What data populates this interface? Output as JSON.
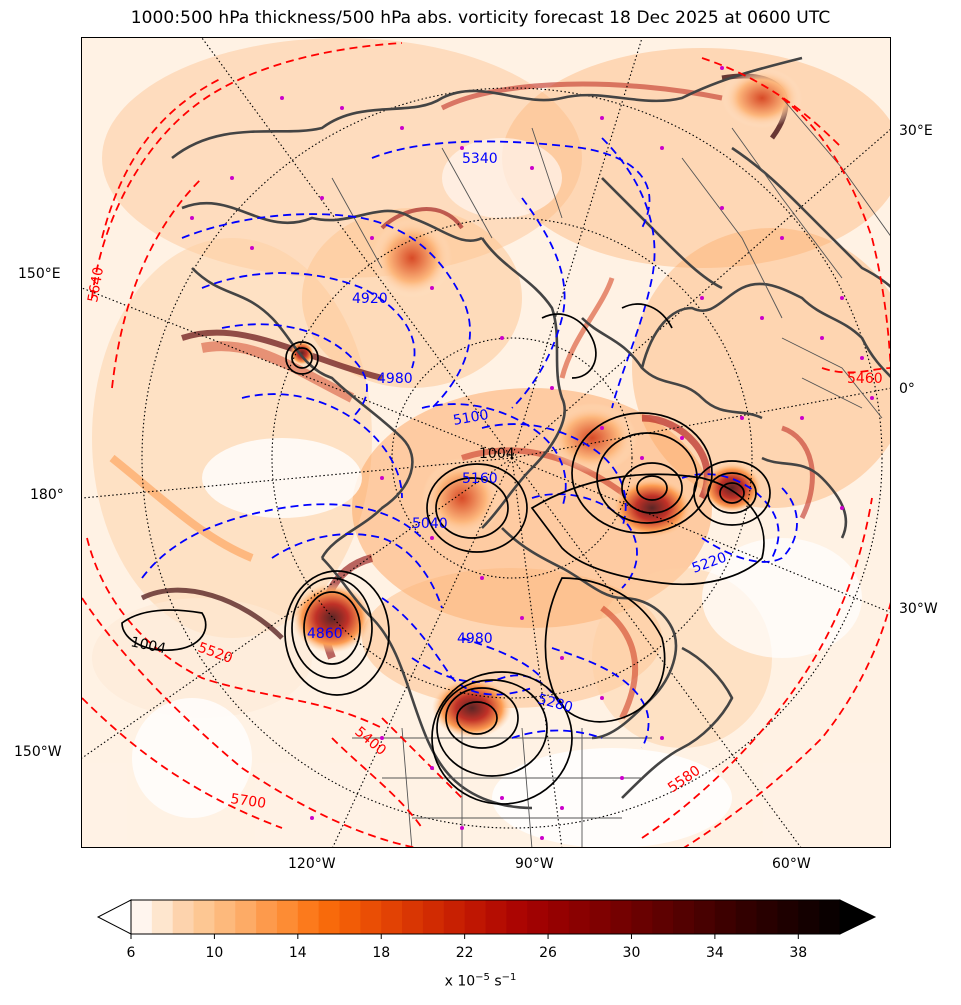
{
  "title": "1000:500 hPa thickness/500 hPa abs. vorticity forecast 18 Dec 2025 at 0600 UTC",
  "map": {
    "projection_labels": {
      "right": [
        "30°E",
        "0°",
        "30°W"
      ],
      "left": [
        "150°E",
        "180°",
        "150°W"
      ],
      "bottom": [
        "120°W",
        "90°W",
        "60°W"
      ]
    },
    "thickness_labels_red": [
      "5640",
      "5460",
      "5520",
      "5400",
      "5700",
      "5580"
    ],
    "thickness_labels_blue": [
      "5340",
      "4920",
      "4980",
      "5100",
      "5160",
      "5040",
      "4860",
      "4980",
      "5220",
      "5280"
    ],
    "pressure_labels_black": [
      "1004",
      "1004"
    ],
    "colors": {
      "thickness_cold": "#0000ff",
      "thickness_warm": "#ff0000",
      "pressure": "#000000",
      "coastline": "#444444",
      "stations": "#cc00cc",
      "graticule": "#000000"
    }
  },
  "colorbar": {
    "ticks": [
      "6",
      "10",
      "14",
      "18",
      "22",
      "26",
      "30",
      "34",
      "38"
    ],
    "min": 6,
    "max": 40,
    "step": 1,
    "units_prefix": "x 10",
    "units_exp": "−5",
    "units_suffix": " s",
    "units_exp2": "−1",
    "colors": [
      "#fff5ee",
      "#fee6ce",
      "#fdd3ad",
      "#fdc793",
      "#fdb97c",
      "#fdab66",
      "#fd9a4c",
      "#fd8c34",
      "#fc7a1c",
      "#f86a0b",
      "#f25c06",
      "#ea4e05",
      "#e24204",
      "#d93603",
      "#d12b02",
      "#c82002",
      "#bf1602",
      "#b50d02",
      "#ab0502",
      "#a00202",
      "#950101",
      "#8a0101",
      "#7f0101",
      "#740101",
      "#690101",
      "#5e0101",
      "#530101",
      "#480101",
      "#3d0000",
      "#320000",
      "#280000",
      "#1e0000",
      "#140000",
      "#0a0000"
    ]
  }
}
